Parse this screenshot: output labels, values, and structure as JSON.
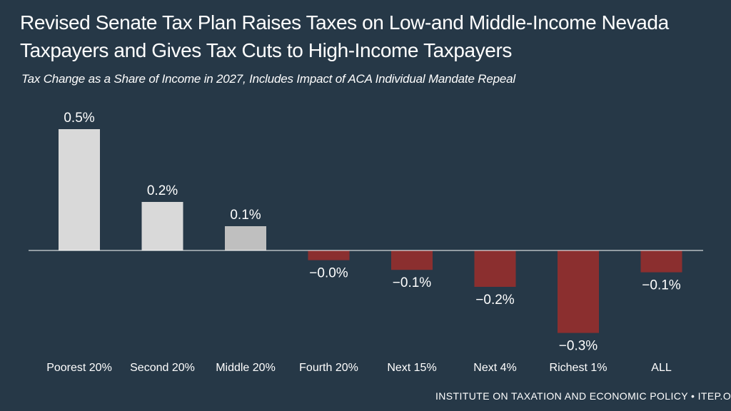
{
  "header": {
    "title_line1": "Revised Senate Tax Plan Raises Taxes on Low-and Middle-Income Nevada",
    "title_line2": "Taxpayers and Gives Tax Cuts to High-Income Taxpayers",
    "subtitle": "Tax Change as a Share of Income in 2027, Includes Impact of ACA Individual Mandate Repeal"
  },
  "footer": {
    "text": "INSTITUTE ON TAXATION AND ECONOMIC POLICY • ITEP.OR"
  },
  "colors": {
    "background": "#263847",
    "positive": "#d9d9d9",
    "positive_dim": "#bfbfbf",
    "negative": "#8b2f2f",
    "axis": "#ffffff"
  },
  "chart_data": {
    "type": "bar",
    "title": "Revised Senate Tax Plan Raises Taxes on Low-and Middle-Income Nevada Taxpayers and Gives Tax Cuts to High-Income Taxpayers",
    "subtitle": "Tax Change as a Share of Income in 2027, Includes Impact of ACA Individual Mandate Repeal",
    "xlabel": "",
    "ylabel": "",
    "categories": [
      "Poorest 20%",
      "Second 20%",
      "Middle 20%",
      "Fourth 20%",
      "Next 15%",
      "Next 4%",
      "Richest 1%",
      "ALL"
    ],
    "values": [
      0.5,
      0.2,
      0.1,
      -0.04,
      -0.08,
      -0.15,
      -0.34,
      -0.09
    ],
    "value_labels": [
      "0.5%",
      "0.2%",
      "0.1%",
      "−0.0%",
      "−0.1%",
      "−0.2%",
      "−0.3%",
      "−0.1%"
    ],
    "ylim": [
      -0.4,
      0.55
    ],
    "grid": false,
    "legend": "none"
  }
}
